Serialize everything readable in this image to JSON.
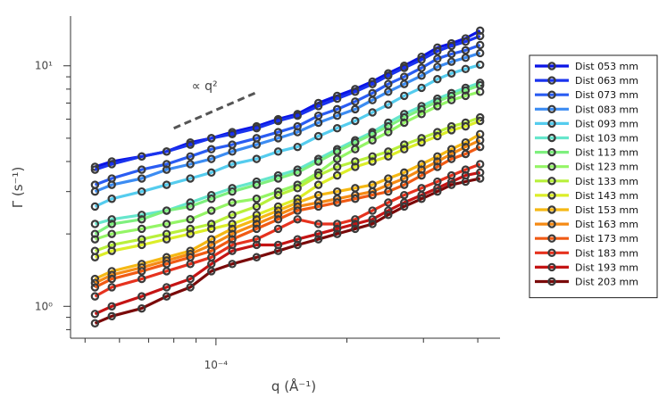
{
  "chart_data": {
    "type": "line",
    "title": "",
    "xscale": "log",
    "yscale": "log",
    "xlim": [
      4.63e-05,
      0.00045
    ],
    "ylim": [
      0.737,
      16.1
    ],
    "xlabel": "q (Å⁻¹)",
    "ylabel": "Γ (s⁻¹)",
    "x_ticks": [
      {
        "value": 0.0001,
        "label": "10⁻⁴"
      }
    ],
    "y_ticks": [
      {
        "value": 1,
        "label": "10⁰"
      },
      {
        "value": 10,
        "label": "10¹"
      }
    ],
    "annotation": {
      "text": "∝ q²",
      "x": [
        8e-05,
        0.000125
      ],
      "y": [
        5.5,
        7.8
      ]
    },
    "grid": false,
    "legend": "right",
    "x": [
      5.27e-05,
      5.76e-05,
      6.75e-05,
      7.7e-05,
      8.73e-05,
      9.76e-05,
      0.000109,
      0.000124,
      0.000139,
      0.000154,
      0.000172,
      0.00019,
      0.000209,
      0.000229,
      0.000249,
      0.000271,
      0.000297,
      0.000323,
      0.000348,
      0.000375,
      0.000405
    ],
    "series": [
      {
        "name": "Dist 053 mm",
        "color": "#0a14e6",
        "values": [
          3.8,
          4.0,
          4.2,
          4.4,
          4.8,
          5.0,
          5.3,
          5.6,
          6.0,
          6.3,
          7.0,
          7.5,
          8.0,
          8.6,
          9.3,
          10.0,
          10.9,
          11.9,
          12.4,
          13.0,
          14.0
        ]
      },
      {
        "name": "Dist 063 mm",
        "color": "#1a33ee",
        "values": [
          3.7,
          3.9,
          4.2,
          4.4,
          4.7,
          5.0,
          5.2,
          5.5,
          5.9,
          6.2,
          6.8,
          7.3,
          7.8,
          8.4,
          9.1,
          9.8,
          10.6,
          11.5,
          12.1,
          12.6,
          13.3
        ]
      },
      {
        "name": "Dist 073 mm",
        "color": "#2a5cf2",
        "values": [
          3.2,
          3.4,
          3.7,
          3.9,
          4.2,
          4.5,
          4.7,
          5.0,
          5.3,
          5.6,
          6.2,
          6.6,
          7.1,
          7.7,
          8.4,
          9.0,
          9.8,
          10.7,
          11.2,
          11.6,
          12.2
        ]
      },
      {
        "name": "Dist 083 mm",
        "color": "#3c8cf2",
        "values": [
          3.0,
          3.2,
          3.4,
          3.7,
          3.9,
          4.1,
          4.4,
          4.7,
          5.0,
          5.3,
          5.8,
          6.2,
          6.6,
          7.2,
          7.8,
          8.4,
          9.1,
          9.9,
          10.4,
          10.8,
          11.3
        ]
      },
      {
        "name": "Dist 093 mm",
        "color": "#55ccee",
        "values": [
          2.6,
          2.8,
          3.0,
          3.2,
          3.4,
          3.6,
          3.9,
          4.1,
          4.4,
          4.6,
          5.1,
          5.5,
          5.9,
          6.4,
          6.9,
          7.5,
          8.1,
          8.8,
          9.3,
          9.7,
          10.1
        ]
      },
      {
        "name": "Dist 103 mm",
        "color": "#66e6cc",
        "values": [
          2.2,
          2.3,
          2.4,
          2.5,
          2.7,
          2.9,
          3.1,
          3.3,
          3.5,
          3.7,
          4.1,
          4.5,
          4.9,
          5.3,
          5.8,
          6.3,
          6.8,
          7.3,
          7.7,
          8.1,
          8.5
        ]
      },
      {
        "name": "Dist 113 mm",
        "color": "#7ef07e",
        "values": [
          2.0,
          2.2,
          2.3,
          2.5,
          2.6,
          2.8,
          3.0,
          3.2,
          3.4,
          3.6,
          4.0,
          4.4,
          4.8,
          5.2,
          5.6,
          6.1,
          6.6,
          7.1,
          7.5,
          7.9,
          8.3
        ]
      },
      {
        "name": "Dist 123 mm",
        "color": "#94f566",
        "values": [
          1.9,
          2.0,
          2.1,
          2.2,
          2.3,
          2.5,
          2.7,
          2.8,
          3.0,
          3.2,
          3.6,
          4.1,
          4.5,
          4.9,
          5.3,
          5.8,
          6.3,
          6.8,
          7.2,
          7.5,
          7.8
        ]
      },
      {
        "name": "Dist 133 mm",
        "color": "#b8f03c",
        "values": [
          1.7,
          1.8,
          1.9,
          2.0,
          2.1,
          2.2,
          2.4,
          2.6,
          2.9,
          3.1,
          3.5,
          3.8,
          4.0,
          4.2,
          4.4,
          4.7,
          5.0,
          5.3,
          5.6,
          5.8,
          6.1
        ]
      },
      {
        "name": "Dist 143 mm",
        "color": "#dcee28",
        "values": [
          1.6,
          1.7,
          1.8,
          1.9,
          2.0,
          2.1,
          2.2,
          2.4,
          2.6,
          2.8,
          3.2,
          3.5,
          3.8,
          4.0,
          4.2,
          4.5,
          4.8,
          5.1,
          5.4,
          5.6,
          5.9
        ]
      },
      {
        "name": "Dist 153 mm",
        "color": "#f5b814",
        "values": [
          1.3,
          1.4,
          1.5,
          1.6,
          1.7,
          1.9,
          2.1,
          2.3,
          2.5,
          2.7,
          2.9,
          3.0,
          3.1,
          3.2,
          3.4,
          3.6,
          3.9,
          4.2,
          4.5,
          4.8,
          5.2
        ]
      },
      {
        "name": "Dist 163 mm",
        "color": "#f58a14",
        "values": [
          1.25,
          1.35,
          1.45,
          1.55,
          1.65,
          1.8,
          2.0,
          2.2,
          2.4,
          2.6,
          2.7,
          2.8,
          2.9,
          3.0,
          3.2,
          3.4,
          3.7,
          4.0,
          4.3,
          4.6,
          4.9
        ]
      },
      {
        "name": "Dist 173 mm",
        "color": "#f05a14",
        "values": [
          1.2,
          1.3,
          1.4,
          1.5,
          1.6,
          1.7,
          1.9,
          2.1,
          2.3,
          2.5,
          2.6,
          2.7,
          2.8,
          2.9,
          3.0,
          3.2,
          3.5,
          3.8,
          4.1,
          4.3,
          4.6
        ]
      },
      {
        "name": "Dist 183 mm",
        "color": "#e6321e",
        "values": [
          1.1,
          1.2,
          1.3,
          1.4,
          1.5,
          1.6,
          1.8,
          1.9,
          2.1,
          2.3,
          2.2,
          2.2,
          2.3,
          2.5,
          2.7,
          2.9,
          3.1,
          3.3,
          3.5,
          3.7,
          3.9
        ]
      },
      {
        "name": "Dist 193 mm",
        "color": "#c41414",
        "values": [
          0.93,
          1.0,
          1.1,
          1.2,
          1.3,
          1.5,
          1.7,
          1.8,
          1.8,
          1.9,
          2.0,
          2.1,
          2.2,
          2.3,
          2.5,
          2.7,
          2.9,
          3.1,
          3.3,
          3.5,
          3.6
        ]
      },
      {
        "name": "Dist 203 mm",
        "color": "#7a0a0a",
        "values": [
          0.85,
          0.91,
          0.98,
          1.1,
          1.2,
          1.4,
          1.5,
          1.6,
          1.7,
          1.8,
          1.9,
          2.0,
          2.1,
          2.2,
          2.4,
          2.6,
          2.8,
          3.0,
          3.2,
          3.3,
          3.4
        ]
      }
    ]
  }
}
